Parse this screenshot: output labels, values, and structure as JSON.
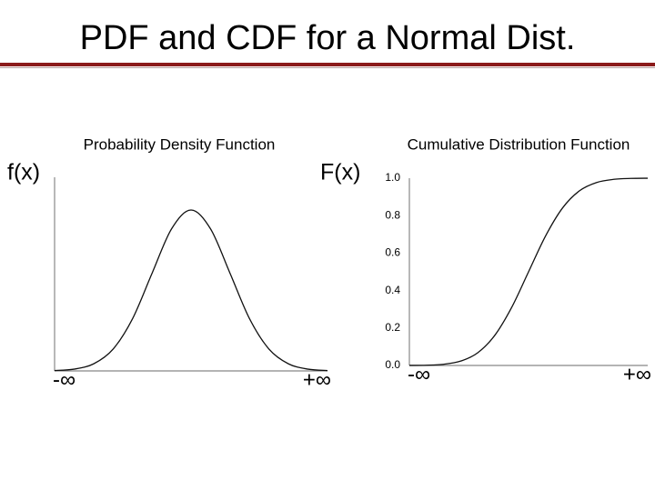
{
  "slide": {
    "title": "PDF and CDF for a Normal Dist."
  },
  "chart_data": [
    {
      "type": "line",
      "title": "Probability Density Function",
      "y_label": "f(x)",
      "x": [
        -3.5,
        -3,
        -2.5,
        -2,
        -1.5,
        -1,
        -0.5,
        0,
        0.5,
        1,
        1.5,
        2,
        2.5,
        3,
        3.5
      ],
      "values": [
        0.0009,
        0.0044,
        0.0175,
        0.054,
        0.1295,
        0.242,
        0.3521,
        0.3989,
        0.3521,
        0.242,
        0.1295,
        0.054,
        0.0175,
        0.0044,
        0.0009
      ],
      "color": "#111111",
      "xlim": [
        -3.5,
        3.5
      ],
      "xticks": [
        {
          "value": -3.5,
          "label": "-∞"
        },
        {
          "value": 3.5,
          "label": "+∞"
        }
      ],
      "ylim": [
        0,
        0.48
      ]
    },
    {
      "type": "line",
      "title": "Cumulative Distribution Function",
      "y_label": "F(x)",
      "x": [
        -3.5,
        -3,
        -2.5,
        -2,
        -1.5,
        -1,
        -0.5,
        0,
        0.5,
        1,
        1.5,
        2,
        2.5,
        3,
        3.5
      ],
      "values": [
        0.0002,
        0.0013,
        0.0062,
        0.0228,
        0.0668,
        0.1587,
        0.3085,
        0.5,
        0.6915,
        0.8413,
        0.9332,
        0.9772,
        0.9938,
        0.9987,
        0.9998
      ],
      "color": "#111111",
      "xlim": [
        -3.5,
        3.5
      ],
      "xticks": [
        {
          "value": -3.5,
          "label": "-∞"
        },
        {
          "value": 3.5,
          "label": "+∞"
        }
      ],
      "ylim": [
        0,
        1
      ],
      "yticks": [
        {
          "value": 0,
          "label": "0.0"
        },
        0.2,
        0.4,
        0.6,
        0.8,
        {
          "value": 1,
          "label": "1.0"
        }
      ]
    }
  ]
}
